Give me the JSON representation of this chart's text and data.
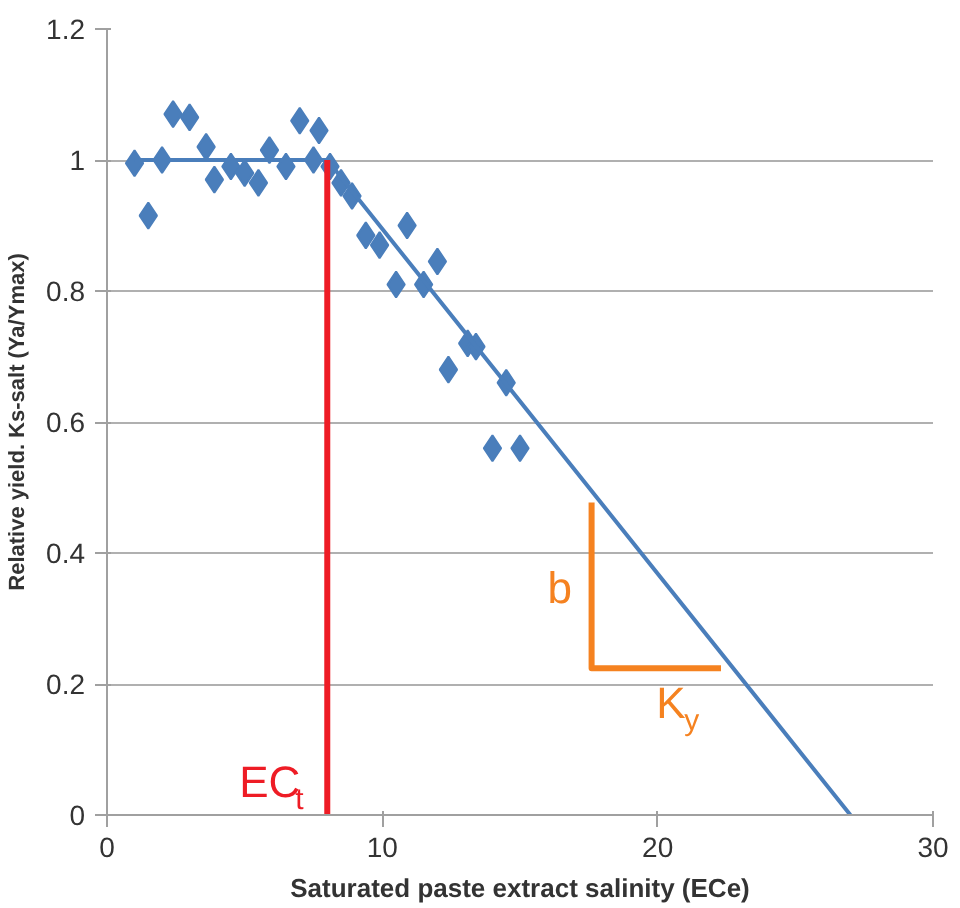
{
  "chart_data": {
    "type": "scatter",
    "xlabel": "Saturated paste extract salinity (ECe)",
    "ylabel": "Relative yield. Ks-salt (Ya/Ymax)",
    "xlim": [
      0,
      30
    ],
    "xticks": [
      0,
      10,
      20,
      30
    ],
    "ylim": [
      0,
      1.2
    ],
    "yticks": [
      0,
      0.2,
      0.4,
      0.6,
      0.8,
      1,
      1.2
    ],
    "grid": "y",
    "series": [
      {
        "marker": "diamond",
        "color": "#4a7ebb",
        "x": [
          1.0,
          1.5,
          2.0,
          2.4,
          3.0,
          3.6,
          3.9,
          4.5,
          5.0,
          5.5,
          5.9,
          6.5,
          7.0,
          7.5,
          7.7,
          8.1,
          8.5,
          8.9,
          9.4,
          9.9,
          10.5,
          10.9,
          11.5,
          12.0,
          12.4,
          13.1,
          13.4,
          14.0,
          14.5,
          15.0
        ],
        "values": [
          0.995,
          0.915,
          1.0,
          1.07,
          1.065,
          1.02,
          0.97,
          0.99,
          0.98,
          0.965,
          1.015,
          0.99,
          1.06,
          1.0,
          1.045,
          0.99,
          0.965,
          0.945,
          0.885,
          0.87,
          0.81,
          0.9,
          0.81,
          0.845,
          0.68,
          0.72,
          0.715,
          0.56,
          0.66,
          0.56
        ]
      },
      {
        "type": "line",
        "color": "#4a7ebb",
        "x": [
          1,
          8,
          27
        ],
        "values": [
          1,
          1,
          0
        ]
      },
      {
        "type": "line",
        "color": "#ee1c25",
        "x": [
          8,
          8
        ],
        "values": [
          0,
          1
        ]
      },
      {
        "type": "line",
        "color": "#f58220",
        "x": [
          17.6,
          17.6,
          22.3
        ],
        "values": [
          0.477,
          0.224,
          0.224
        ]
      }
    ],
    "annotations": [
      "EC$_{t}$",
      "b",
      "K$_{y}$"
    ]
  }
}
